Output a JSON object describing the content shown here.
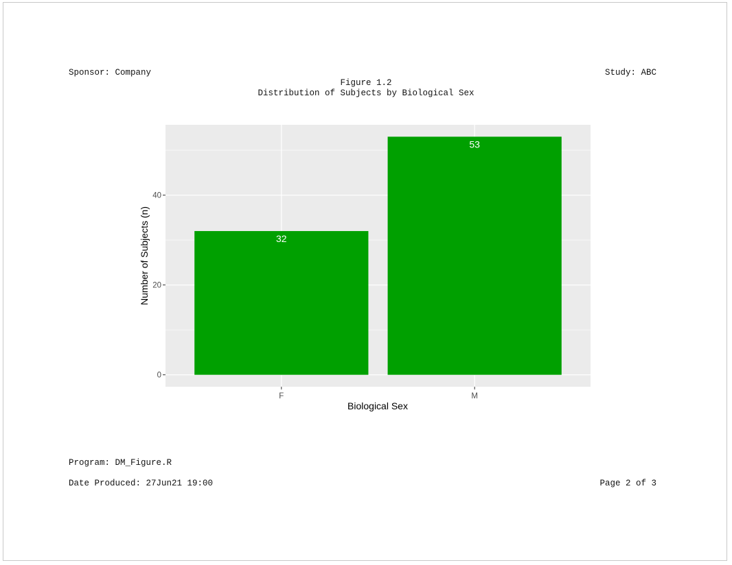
{
  "header": {
    "sponsor": "Sponsor: Company",
    "study": "Study: ABC",
    "figure_number": "Figure 1.2",
    "figure_title": "Distribution of Subjects by Biological Sex"
  },
  "footer": {
    "program": "Program: DM_Figure.R",
    "date_produced": "Date Produced: 27Jun21 19:00",
    "page": "Page 2 of 3"
  },
  "colors": {
    "bar": "#00A000",
    "panel": "#EBEBEB",
    "grid": "#FFFFFF",
    "bar_label": "#FFFFFF"
  },
  "chart_data": {
    "type": "bar",
    "categories": [
      "F",
      "M"
    ],
    "values": [
      32,
      53
    ],
    "data_labels": [
      "32",
      "53"
    ],
    "xlabel": "Biological Sex",
    "ylabel": "Number of Subjects (n)",
    "ylim": [
      -2.65,
      55.65
    ],
    "yticks": [
      0,
      20,
      40
    ],
    "ytick_labels": [
      "0",
      "20",
      "40"
    ],
    "grid": true,
    "legend": "none"
  }
}
